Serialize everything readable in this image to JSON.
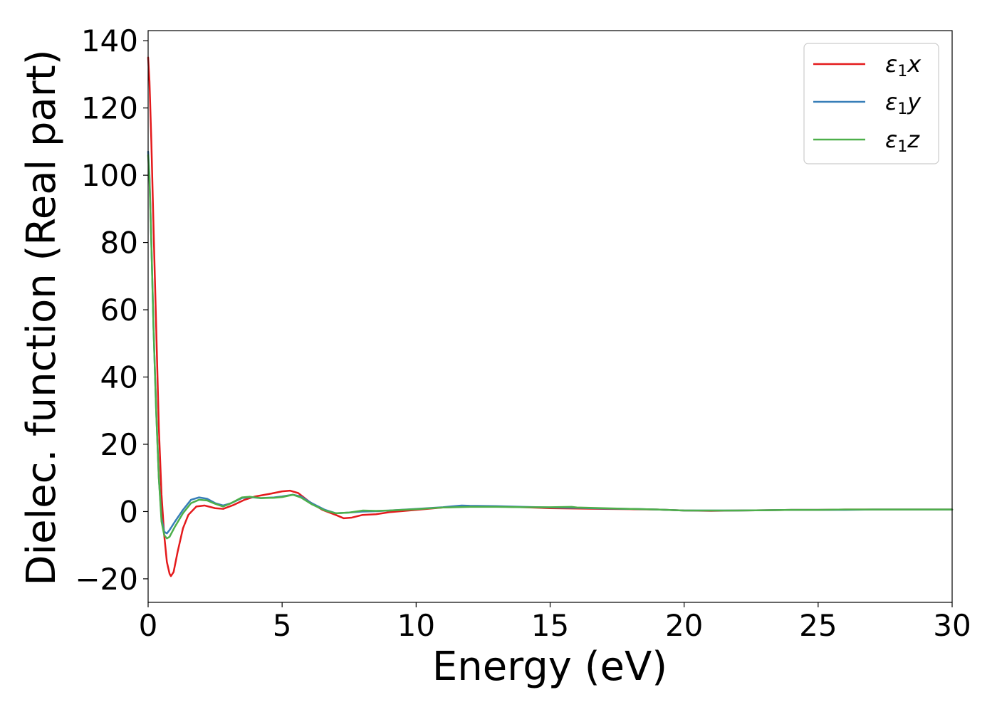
{
  "chart_data": {
    "type": "line",
    "title": "",
    "xlabel": "Energy (eV)",
    "ylabel": "Dielec. function (Real part)",
    "xlim": [
      0,
      30
    ],
    "ylim": [
      -27,
      143
    ],
    "xticks": [
      0,
      5,
      10,
      15,
      20,
      25,
      30
    ],
    "xtick_labels": [
      "0",
      "5",
      "10",
      "15",
      "20",
      "25",
      "30"
    ],
    "yticks": [
      -20,
      0,
      20,
      40,
      60,
      80,
      100,
      120,
      140
    ],
    "ytick_labels": [
      "−20",
      "0",
      "20",
      "40",
      "60",
      "80",
      "100",
      "120",
      "140"
    ],
    "grid": false,
    "legend_position": "top-right",
    "series": [
      {
        "name": "ε₁x",
        "legend_main": "ε",
        "legend_sub": "1",
        "legend_tail": "x",
        "color": "#e41a1c",
        "points": [
          [
            0,
            135
          ],
          [
            0.05,
            128
          ],
          [
            0.12,
            110
          ],
          [
            0.2,
            85
          ],
          [
            0.3,
            55
          ],
          [
            0.4,
            25
          ],
          [
            0.5,
            5
          ],
          [
            0.6,
            -7
          ],
          [
            0.7,
            -15
          ],
          [
            0.8,
            -18.5
          ],
          [
            0.85,
            -19.2
          ],
          [
            0.95,
            -18
          ],
          [
            1.1,
            -12
          ],
          [
            1.3,
            -5
          ],
          [
            1.5,
            -1
          ],
          [
            1.8,
            1.5
          ],
          [
            2.1,
            1.8
          ],
          [
            2.5,
            1
          ],
          [
            2.8,
            0.8
          ],
          [
            3.2,
            2
          ],
          [
            3.6,
            3.5
          ],
          [
            4.0,
            4.5
          ],
          [
            4.5,
            5.2
          ],
          [
            5.0,
            6
          ],
          [
            5.3,
            6.2
          ],
          [
            5.6,
            5.5
          ],
          [
            6.0,
            3
          ],
          [
            6.5,
            0.5
          ],
          [
            7.0,
            -1
          ],
          [
            7.3,
            -2
          ],
          [
            7.6,
            -1.8
          ],
          [
            8.0,
            -1
          ],
          [
            8.5,
            -0.8
          ],
          [
            9.0,
            -0.2
          ],
          [
            10,
            0.5
          ],
          [
            11,
            1.2
          ],
          [
            12,
            1.5
          ],
          [
            13,
            1.5
          ],
          [
            14,
            1.3
          ],
          [
            15,
            1.0
          ],
          [
            16,
            0.9
          ],
          [
            17,
            0.8
          ],
          [
            18,
            0.7
          ],
          [
            19,
            0.6
          ],
          [
            20,
            0.3
          ],
          [
            21,
            0.2
          ],
          [
            22,
            0.3
          ],
          [
            23,
            0.4
          ],
          [
            24,
            0.5
          ],
          [
            25,
            0.5
          ],
          [
            26,
            0.6
          ],
          [
            27,
            0.6
          ],
          [
            28,
            0.6
          ],
          [
            29,
            0.6
          ],
          [
            30,
            0.6
          ]
        ]
      },
      {
        "name": "ε₁y",
        "legend_main": "ε",
        "legend_sub": "1",
        "legend_tail": "y",
        "color": "#377eb8",
        "points": [
          [
            0,
            107
          ],
          [
            0.05,
            100
          ],
          [
            0.12,
            80
          ],
          [
            0.2,
            55
          ],
          [
            0.3,
            30
          ],
          [
            0.4,
            10
          ],
          [
            0.5,
            -2
          ],
          [
            0.6,
            -6
          ],
          [
            0.7,
            -6.5
          ],
          [
            0.8,
            -5.5
          ],
          [
            1.0,
            -3
          ],
          [
            1.3,
            0.5
          ],
          [
            1.6,
            3.5
          ],
          [
            1.9,
            4.2
          ],
          [
            2.2,
            3.8
          ],
          [
            2.5,
            2.5
          ],
          [
            2.8,
            1.8
          ],
          [
            3.1,
            2.5
          ],
          [
            3.5,
            4
          ],
          [
            3.8,
            4.3
          ],
          [
            4.2,
            4
          ],
          [
            4.7,
            4.2
          ],
          [
            5.0,
            4.5
          ],
          [
            5.4,
            5
          ],
          [
            5.7,
            4.5
          ],
          [
            6.1,
            2.5
          ],
          [
            6.6,
            0.5
          ],
          [
            7.0,
            -0.5
          ],
          [
            7.5,
            -0.3
          ],
          [
            8.0,
            0
          ],
          [
            8.5,
            0.1
          ],
          [
            9.0,
            0.3
          ],
          [
            10,
            0.8
          ],
          [
            11,
            1.3
          ],
          [
            11.7,
            1.8
          ],
          [
            12,
            1.7
          ],
          [
            13,
            1.6
          ],
          [
            14,
            1.4
          ],
          [
            15,
            1.2
          ],
          [
            16,
            1.1
          ],
          [
            17,
            0.9
          ],
          [
            18,
            0.8
          ],
          [
            19,
            0.6
          ],
          [
            20,
            0.3
          ],
          [
            21,
            0.3
          ],
          [
            22,
            0.3
          ],
          [
            23,
            0.4
          ],
          [
            24,
            0.5
          ],
          [
            25,
            0.5
          ],
          [
            26,
            0.5
          ],
          [
            27,
            0.6
          ],
          [
            28,
            0.6
          ],
          [
            29,
            0.6
          ],
          [
            30,
            0.6
          ]
        ]
      },
      {
        "name": "ε₁z",
        "legend_main": "ε",
        "legend_sub": "1",
        "legend_tail": "z",
        "color": "#4daf4a",
        "points": [
          [
            0,
            106
          ],
          [
            0.05,
            99
          ],
          [
            0.12,
            80
          ],
          [
            0.2,
            55
          ],
          [
            0.3,
            30
          ],
          [
            0.4,
            10
          ],
          [
            0.5,
            -3
          ],
          [
            0.6,
            -7
          ],
          [
            0.7,
            -8
          ],
          [
            0.8,
            -7.5
          ],
          [
            1.0,
            -4.5
          ],
          [
            1.3,
            -0.5
          ],
          [
            1.6,
            2.5
          ],
          [
            1.9,
            3.5
          ],
          [
            2.2,
            3.3
          ],
          [
            2.5,
            2.3
          ],
          [
            2.8,
            1.5
          ],
          [
            3.1,
            2.5
          ],
          [
            3.5,
            4.2
          ],
          [
            3.8,
            4.4
          ],
          [
            4.2,
            4
          ],
          [
            4.7,
            4.1
          ],
          [
            5.0,
            4.3
          ],
          [
            5.4,
            5
          ],
          [
            5.7,
            4.2
          ],
          [
            6.1,
            2.2
          ],
          [
            6.6,
            0.3
          ],
          [
            7.0,
            -0.5
          ],
          [
            7.5,
            -0.3
          ],
          [
            8.0,
            0.3
          ],
          [
            8.5,
            0.2
          ],
          [
            9.0,
            0.3
          ],
          [
            10,
            0.7
          ],
          [
            11,
            1.2
          ],
          [
            12,
            1.4
          ],
          [
            13,
            1.4
          ],
          [
            14,
            1.3
          ],
          [
            15,
            1.3
          ],
          [
            15.8,
            1.4
          ],
          [
            16,
            1.2
          ],
          [
            17,
            1.0
          ],
          [
            18,
            0.8
          ],
          [
            19,
            0.6
          ],
          [
            20,
            0.3
          ],
          [
            21,
            0.3
          ],
          [
            22,
            0.3
          ],
          [
            23,
            0.4
          ],
          [
            24,
            0.5
          ],
          [
            25,
            0.5
          ],
          [
            26,
            0.6
          ],
          [
            27,
            0.6
          ],
          [
            28,
            0.6
          ],
          [
            29,
            0.6
          ],
          [
            30,
            0.6
          ]
        ]
      }
    ]
  }
}
